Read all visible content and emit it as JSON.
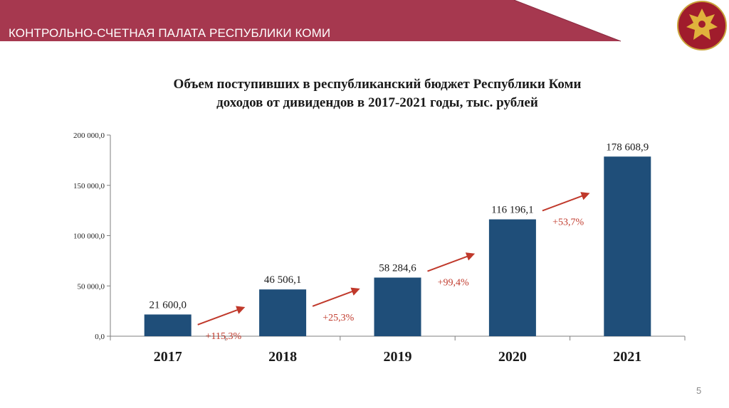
{
  "header": {
    "org_name": "КОНТРОЛЬНО-СЧЕТНАЯ ПАЛАТА РЕСПУБЛИКИ КОМИ",
    "banner_color": "#a6384f",
    "emblem_icon": "coat-of-arms-komi-icon"
  },
  "chart_data": {
    "type": "bar",
    "title": "Объем поступивших в республиканский бюджет Республики Коми доходов от дивидендов в 2017-2021 годы, тыс. рублей",
    "title_lines": [
      "Объем поступивших в республиканский бюджет Республики Коми",
      "доходов от дивидендов в 2017-2021 годы, тыс. рублей"
    ],
    "categories": [
      "2017",
      "2018",
      "2019",
      "2020",
      "2021"
    ],
    "values": [
      21600.0,
      46506.1,
      58284.6,
      116196.1,
      178608.9
    ],
    "value_labels": [
      "21 600,0",
      "46 506,1",
      "58 284,6",
      "116 196,1",
      "178 608,9"
    ],
    "growth_labels": [
      "+115,3%",
      "+25,3%",
      "+99,4%",
      "+53,7%"
    ],
    "ylim": [
      0,
      200000
    ],
    "yticks": [
      0,
      50000,
      100000,
      150000,
      200000
    ],
    "ytick_labels": [
      "0,0",
      "50 000,0",
      "100 000,0",
      "150 000,0",
      "200 000,0"
    ],
    "xlabel": "",
    "ylabel": "",
    "grid": false,
    "bar_color": "#1f4e79",
    "growth_color": "#c0392b"
  },
  "footer": {
    "page_number": "5"
  }
}
